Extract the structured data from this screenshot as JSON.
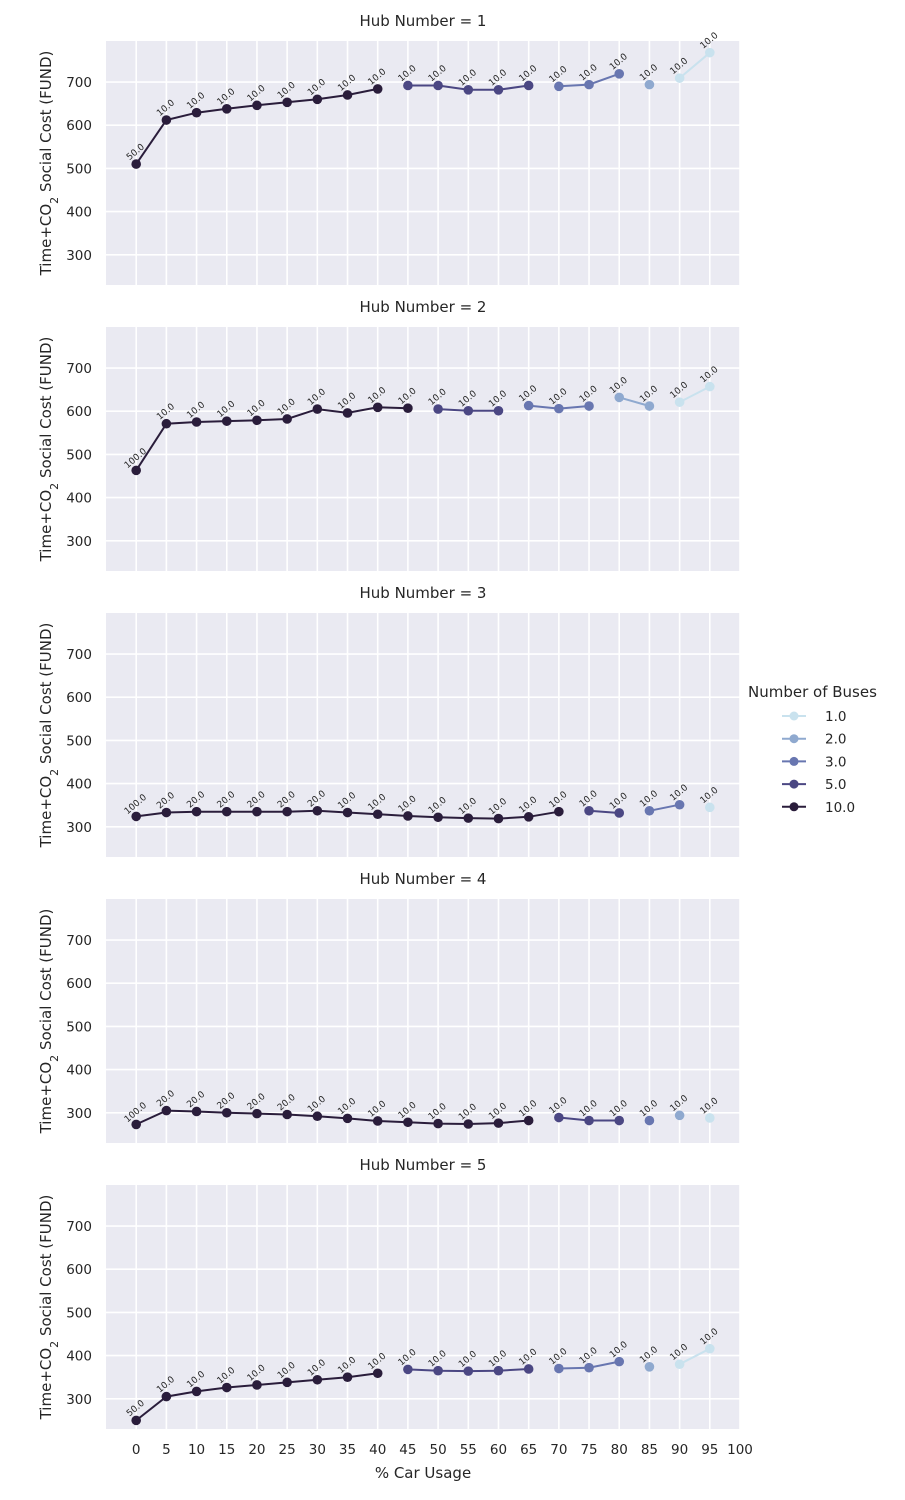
{
  "chart_data": {
    "type": "line",
    "xlabel": "% Car Usage",
    "ylabel": "Time+CO",
    "ylabel_sub": "2",
    "ylabel_tail": " Social Cost (FUND)",
    "x_ticks": [
      0,
      5,
      10,
      15,
      20,
      25,
      30,
      35,
      40,
      45,
      50,
      55,
      60,
      65,
      70,
      75,
      80,
      85,
      90,
      95,
      100
    ],
    "y_ticks": [
      300,
      400,
      500,
      600,
      700
    ],
    "xlim": [
      -5,
      100
    ],
    "ylim": [
      230,
      795
    ],
    "legend": {
      "title": "Number of Buses",
      "placement": "right",
      "entries": [
        {
          "label": "1.0",
          "color": "#c9e2ee"
        },
        {
          "label": "2.0",
          "color": "#8fa9cf"
        },
        {
          "label": "3.0",
          "color": "#6876b0"
        },
        {
          "label": "5.0",
          "color": "#4b4783"
        },
        {
          "label": "10.0",
          "color": "#2a1d3b"
        }
      ]
    },
    "panels": [
      {
        "title": "Hub Number = 1",
        "series": [
          {
            "buses": "10.0",
            "x": [
              0,
              5,
              10,
              15,
              20,
              25,
              30,
              35,
              40
            ],
            "y": [
              510,
              612,
              629,
              638,
              646,
              653,
              660,
              670,
              684
            ],
            "labels": [
              "50.0",
              "10.0",
              "10.0",
              "10.0",
              "10.0",
              "10.0",
              "10.0",
              "10.0",
              "10.0"
            ]
          },
          {
            "buses": "5.0",
            "x": [
              45,
              50,
              55,
              60,
              65
            ],
            "y": [
              692,
              692,
              682,
              682,
              692
            ],
            "labels": [
              "10.0",
              "10.0",
              "10.0",
              "10.0",
              "10.0"
            ]
          },
          {
            "buses": "3.0",
            "x": [
              70,
              75,
              80
            ],
            "y": [
              690,
              694,
              719
            ],
            "labels": [
              "10.0",
              "10.0",
              "10.0"
            ]
          },
          {
            "buses": "2.0",
            "x": [
              85
            ],
            "y": [
              694
            ],
            "labels": [
              "10.0"
            ]
          },
          {
            "buses": "1.0",
            "x": [
              90,
              95
            ],
            "y": [
              709,
              768
            ],
            "labels": [
              "10.0",
              "10.0"
            ]
          }
        ]
      },
      {
        "title": "Hub Number = 2",
        "series": [
          {
            "buses": "10.0",
            "x": [
              0,
              5,
              10,
              15,
              20,
              25,
              30,
              35,
              40,
              45
            ],
            "y": [
              463,
              571,
              575,
              577,
              579,
              582,
              605,
              596,
              609,
              607
            ],
            "labels": [
              "100.0",
              "10.0",
              "10.0",
              "10.0",
              "10.0",
              "10.0",
              "10.0",
              "10.0",
              "10.0",
              "10.0"
            ]
          },
          {
            "buses": "5.0",
            "x": [
              50,
              55,
              60
            ],
            "y": [
              605,
              601,
              601
            ],
            "labels": [
              "10.0",
              "10.0",
              "10.0"
            ]
          },
          {
            "buses": "3.0",
            "x": [
              65,
              70,
              75
            ],
            "y": [
              613,
              606,
              612
            ],
            "labels": [
              "10.0",
              "10.0",
              "10.0"
            ]
          },
          {
            "buses": "2.0",
            "x": [
              80,
              85
            ],
            "y": [
              632,
              612
            ],
            "labels": [
              "10.0",
              "10.0"
            ]
          },
          {
            "buses": "1.0",
            "x": [
              90,
              95
            ],
            "y": [
              621,
              657
            ],
            "labels": [
              "10.0",
              "10.0"
            ]
          }
        ]
      },
      {
        "title": "Hub Number = 3",
        "series": [
          {
            "buses": "10.0",
            "x": [
              0,
              5,
              10,
              15,
              20,
              25,
              30,
              35,
              40,
              45,
              50,
              55,
              60,
              65,
              70
            ],
            "y": [
              324,
              333,
              335,
              335,
              335,
              335,
              337,
              333,
              329,
              325,
              322,
              320,
              319,
              323,
              335
            ],
            "labels": [
              "100.0",
              "20.0",
              "20.0",
              "20.0",
              "20.0",
              "20.0",
              "20.0",
              "10.0",
              "10.0",
              "10.0",
              "10.0",
              "10.0",
              "10.0",
              "10.0",
              "10.0"
            ]
          },
          {
            "buses": "5.0",
            "x": [
              75,
              80
            ],
            "y": [
              337,
              332
            ],
            "labels": [
              "10.0",
              "10.0"
            ]
          },
          {
            "buses": "3.0",
            "x": [
              85,
              90
            ],
            "y": [
              337,
              351
            ],
            "labels": [
              "10.0",
              "10.0"
            ]
          },
          {
            "buses": "1.0",
            "x": [
              95
            ],
            "y": [
              345
            ],
            "labels": [
              "10.0"
            ]
          }
        ]
      },
      {
        "title": "Hub Number = 4",
        "series": [
          {
            "buses": "10.0",
            "x": [
              0,
              5,
              10,
              15,
              20,
              25,
              30,
              35,
              40,
              45,
              50,
              55,
              60,
              65
            ],
            "y": [
              273,
              305,
              303,
              300,
              298,
              296,
              292,
              287,
              281,
              278,
              275,
              274,
              276,
              282
            ],
            "labels": [
              "100.0",
              "20.0",
              "20.0",
              "20.0",
              "20.0",
              "20.0",
              "10.0",
              "10.0",
              "10.0",
              "10.0",
              "10.0",
              "10.0",
              "10.0",
              "10.0"
            ]
          },
          {
            "buses": "5.0",
            "x": [
              70,
              75,
              80
            ],
            "y": [
              289,
              282,
              282
            ],
            "labels": [
              "10.0",
              "10.0",
              "10.0"
            ]
          },
          {
            "buses": "3.0",
            "x": [
              85
            ],
            "y": [
              282
            ],
            "labels": [
              "10.0"
            ]
          },
          {
            "buses": "2.0",
            "x": [
              90
            ],
            "y": [
              294
            ],
            "labels": [
              "10.0"
            ]
          },
          {
            "buses": "1.0",
            "x": [
              95
            ],
            "y": [
              288
            ],
            "labels": [
              "10.0"
            ]
          }
        ]
      },
      {
        "title": "Hub Number = 5",
        "series": [
          {
            "buses": "10.0",
            "x": [
              0,
              5,
              10,
              15,
              20,
              25,
              30,
              35,
              40
            ],
            "y": [
              250,
              305,
              317,
              326,
              332,
              338,
              344,
              350,
              359
            ],
            "labels": [
              "50.0",
              "10.0",
              "10.0",
              "10.0",
              "10.0",
              "10.0",
              "10.0",
              "10.0",
              "10.0"
            ]
          },
          {
            "buses": "5.0",
            "x": [
              45,
              50,
              55,
              60,
              65
            ],
            "y": [
              368,
              365,
              364,
              365,
              369
            ],
            "labels": [
              "10.0",
              "10.0",
              "10.0",
              "10.0",
              "10.0"
            ]
          },
          {
            "buses": "3.0",
            "x": [
              70,
              75,
              80
            ],
            "y": [
              370,
              372,
              386
            ],
            "labels": [
              "10.0",
              "10.0",
              "10.0"
            ]
          },
          {
            "buses": "2.0",
            "x": [
              85
            ],
            "y": [
              374
            ],
            "labels": [
              "10.0"
            ]
          },
          {
            "buses": "1.0",
            "x": [
              90,
              95
            ],
            "y": [
              380,
              416
            ],
            "labels": [
              "10.0",
              "10.0"
            ]
          }
        ]
      }
    ]
  }
}
